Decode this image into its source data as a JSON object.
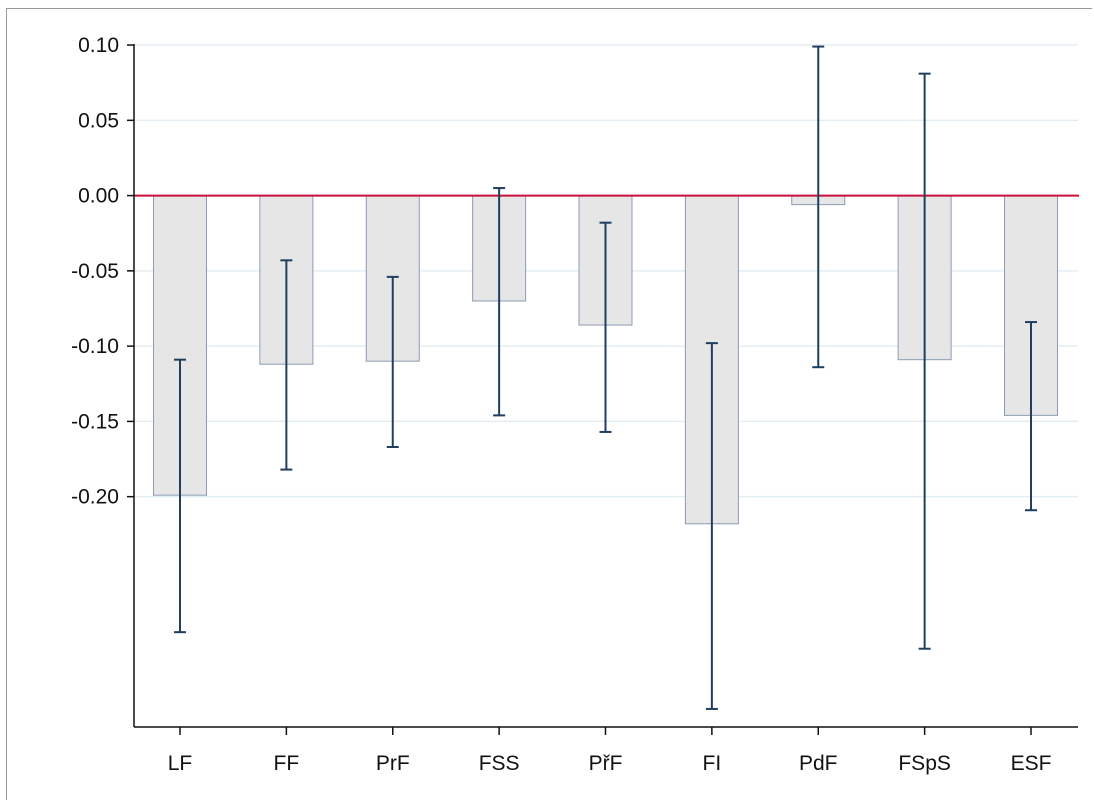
{
  "chart_data": {
    "type": "bar",
    "title": "",
    "xlabel": "",
    "ylabel": "",
    "categories": [
      "LF",
      "FF",
      "PrF",
      "FSS",
      "PřF",
      "FI",
      "PdF",
      "FSpS",
      "ESF"
    ],
    "values": [
      -0.199,
      -0.112,
      -0.11,
      -0.07,
      -0.086,
      -0.218,
      -0.006,
      -0.109,
      -0.146
    ],
    "error_low": [
      -0.29,
      -0.182,
      -0.167,
      -0.146,
      -0.157,
      -0.341,
      -0.114,
      -0.301,
      -0.209
    ],
    "error_high": [
      -0.109,
      -0.043,
      -0.054,
      0.005,
      -0.018,
      -0.098,
      0.099,
      0.081,
      -0.084
    ],
    "y_ticks": [
      0.1,
      0.05,
      0.0,
      -0.05,
      -0.1,
      -0.15,
      -0.2
    ],
    "y_tick_labels": [
      "0.10",
      "0.05",
      "0.00",
      "-0.05",
      "-0.10",
      "-0.15",
      "-0.20"
    ],
    "ylim": [
      -0.353,
      0.11
    ],
    "reference_line": 0.0,
    "grid": true,
    "colors": {
      "bar_fill": "#e6e6e6",
      "bar_stroke": "#8c9cb4",
      "error_bar": "#1f3f5f",
      "reference_line": "#c8103a",
      "grid": "#e3eef2",
      "axis": "#111111"
    }
  }
}
